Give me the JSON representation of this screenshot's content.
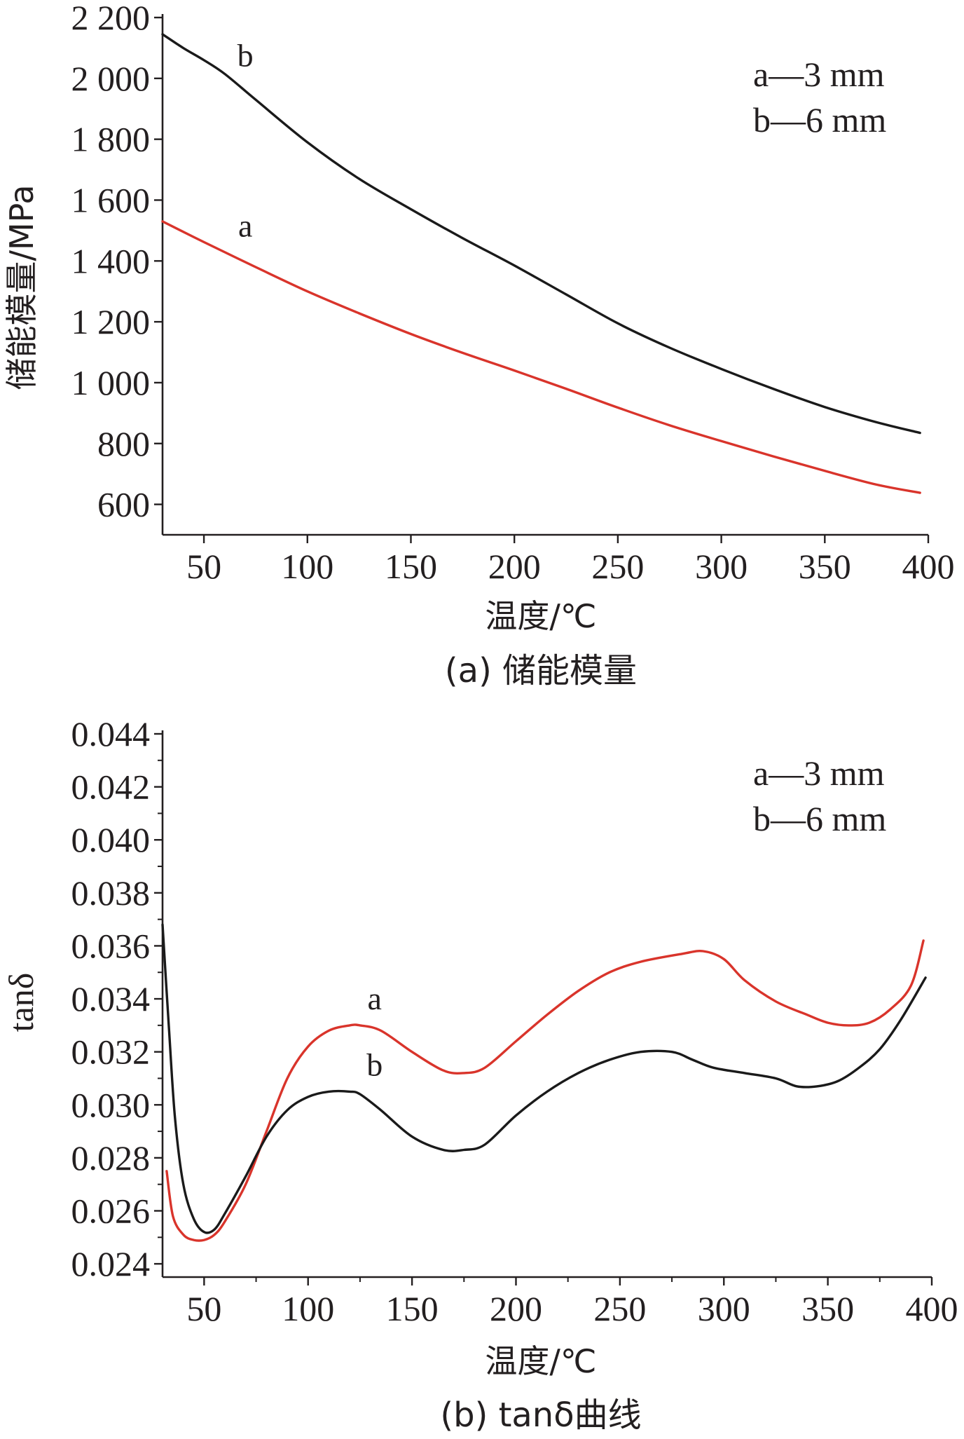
{
  "chart_data": [
    {
      "type": "line",
      "caption": "(a) 储能模量",
      "xlabel": "温度/℃",
      "ylabel": "储能模量/MPa",
      "xlim": [
        30,
        400
      ],
      "ylim": [
        500,
        2200
      ],
      "x_ticks": [
        50,
        100,
        150,
        200,
        250,
        300,
        350,
        400
      ],
      "y_ticks": [
        600,
        800,
        1000,
        1200,
        1400,
        1600,
        1800,
        2000,
        2200
      ],
      "y_tick_labels": [
        "600",
        "800",
        "1 000",
        "1 200",
        "1 400",
        "1 600",
        "1 800",
        "2 000",
        "2 200"
      ],
      "legend": [
        "a—3 mm",
        "b—6 mm"
      ],
      "legend_position": "top-right",
      "series": [
        {
          "name": "a",
          "color": "#d9342b",
          "x": [
            30,
            50,
            75,
            100,
            125,
            150,
            175,
            200,
            225,
            250,
            275,
            300,
            325,
            350,
            375,
            396
          ],
          "y": [
            1530,
            1462,
            1380,
            1300,
            1228,
            1160,
            1098,
            1040,
            980,
            918,
            860,
            808,
            758,
            710,
            665,
            638
          ]
        },
        {
          "name": "b",
          "color": "#1a1a1a",
          "x": [
            30,
            40,
            50,
            60,
            75,
            100,
            125,
            150,
            175,
            200,
            225,
            250,
            275,
            300,
            325,
            350,
            375,
            396
          ],
          "y": [
            2145,
            2100,
            2060,
            2015,
            1930,
            1790,
            1670,
            1570,
            1475,
            1385,
            1290,
            1195,
            1115,
            1045,
            980,
            920,
            870,
            835
          ]
        }
      ],
      "annotations": [
        {
          "text": "a",
          "x": 70,
          "y": 1480
        },
        {
          "text": "b",
          "x": 70,
          "y": 2040
        }
      ]
    },
    {
      "type": "line",
      "caption": "(b) tanδ曲线",
      "xlabel": "温度/℃",
      "ylabel": "tanδ",
      "xlim": [
        30,
        400
      ],
      "ylim": [
        0.0235,
        0.044
      ],
      "x_ticks": [
        50,
        100,
        150,
        200,
        250,
        300,
        350,
        400
      ],
      "y_ticks": [
        0.024,
        0.026,
        0.028,
        0.03,
        0.032,
        0.034,
        0.036,
        0.038,
        0.04,
        0.042,
        0.044
      ],
      "y_tick_labels": [
        "0.024",
        "0.026",
        "0.028",
        "0.030",
        "0.032",
        "0.034",
        "0.036",
        "0.038",
        "0.040",
        "0.042",
        "0.044"
      ],
      "legend": [
        "a—3 mm",
        "b—6 mm"
      ],
      "legend_position": "top-right",
      "series": [
        {
          "name": "a",
          "color": "#d9342b",
          "x": [
            32,
            35,
            40,
            45,
            50,
            55,
            60,
            70,
            80,
            90,
            100,
            110,
            120,
            125,
            135,
            150,
            165,
            175,
            185,
            200,
            215,
            230,
            245,
            260,
            280,
            290,
            300,
            310,
            325,
            340,
            350,
            360,
            370,
            380,
            390,
            396
          ],
          "y": [
            0.0275,
            0.0258,
            0.0251,
            0.0249,
            0.0249,
            0.0251,
            0.0256,
            0.027,
            0.029,
            0.031,
            0.0322,
            0.0328,
            0.033,
            0.033,
            0.0328,
            0.032,
            0.0313,
            0.0312,
            0.0314,
            0.0324,
            0.0334,
            0.0343,
            0.035,
            0.0354,
            0.0357,
            0.0358,
            0.0355,
            0.0347,
            0.0339,
            0.0334,
            0.0331,
            0.033,
            0.0331,
            0.0336,
            0.0345,
            0.0362
          ]
        },
        {
          "name": "b",
          "color": "#1a1a1a",
          "x": [
            30,
            33,
            36,
            40,
            45,
            50,
            55,
            60,
            70,
            80,
            90,
            100,
            110,
            120,
            125,
            135,
            150,
            165,
            175,
            185,
            200,
            215,
            230,
            245,
            260,
            275,
            285,
            295,
            310,
            325,
            335,
            345,
            355,
            365,
            375,
            385,
            397
          ],
          "y": [
            0.0368,
            0.033,
            0.0295,
            0.027,
            0.0257,
            0.0252,
            0.0253,
            0.0259,
            0.0273,
            0.0288,
            0.0298,
            0.0303,
            0.0305,
            0.0305,
            0.0304,
            0.0298,
            0.0288,
            0.0283,
            0.0283,
            0.0285,
            0.0296,
            0.0305,
            0.0312,
            0.0317,
            0.032,
            0.032,
            0.0317,
            0.0314,
            0.0312,
            0.031,
            0.0307,
            0.0307,
            0.0309,
            0.0314,
            0.0321,
            0.0332,
            0.0348
          ]
        }
      ],
      "annotations": [
        {
          "text": "a",
          "x": 132,
          "y": 0.0336
        },
        {
          "text": "b",
          "x": 132,
          "y": 0.0311
        }
      ]
    }
  ]
}
